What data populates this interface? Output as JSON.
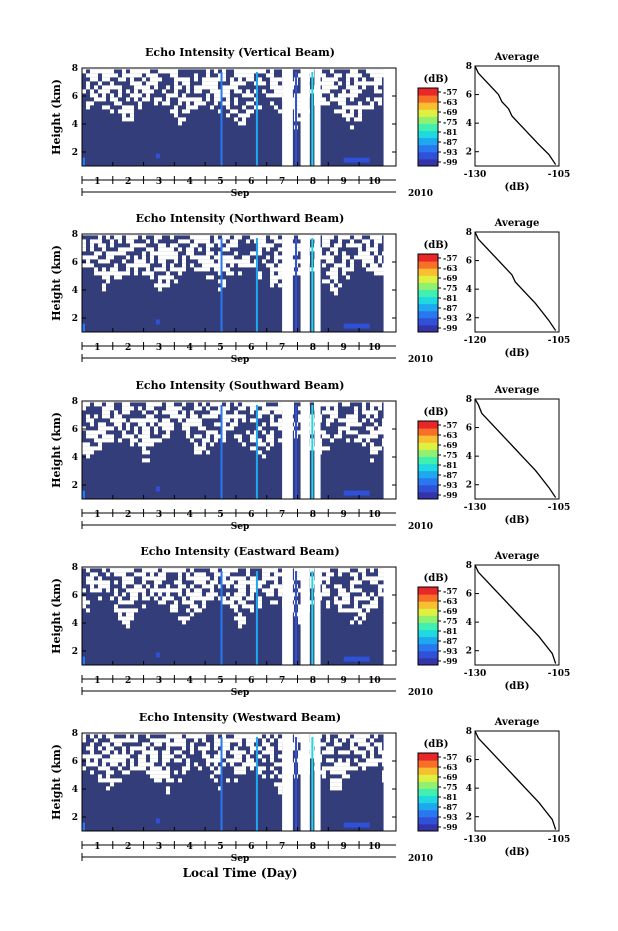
{
  "figure": {
    "xlabel": "Local Time (Day)",
    "month": "Sep",
    "year": "2010",
    "colors": {
      "background_fill": "#333d7a",
      "colormap": [
        "#3434a8",
        "#3050d8",
        "#2a78f0",
        "#1ea8f0",
        "#20d8e0",
        "#40f0b0",
        "#90f070",
        "#e0f040",
        "#f8c030",
        "#f87028",
        "#e82828"
      ]
    }
  },
  "chart_data": [
    {
      "type": "heatmap",
      "title": "Echo Intensity (Vertical Beam)",
      "ylabel": "Height (km)",
      "yticks": [
        "2",
        "4",
        "6",
        "8"
      ],
      "ylim": [
        1,
        8
      ],
      "xticks": [
        "1",
        "2",
        "3",
        "4",
        "5",
        "6",
        "7",
        "8",
        "9",
        "10"
      ],
      "xlim": [
        0.5,
        10.7
      ],
      "colorbar_label": "(dB)",
      "colorbar_ticks": [
        "-57",
        "-63",
        "-69",
        "-75",
        "-81",
        "-87",
        "-93",
        "-99"
      ],
      "profile": {
        "title": "Average",
        "xlabel": "(dB)",
        "xticks": [
          "-130",
          "-105"
        ],
        "xlim": [
          -130,
          -105
        ],
        "yticks": [
          "2",
          "4",
          "6",
          "8"
        ],
        "ylim": [
          1,
          8
        ],
        "x": [
          -130,
          -129,
          -127,
          -125,
          -123,
          -122,
          -120,
          -119,
          -117,
          -115,
          -113,
          -111,
          -108,
          -106
        ],
        "y": [
          8.0,
          7.5,
          7.0,
          6.5,
          6.0,
          5.5,
          5.0,
          4.5,
          4.0,
          3.5,
          3.0,
          2.5,
          1.8,
          1.1
        ]
      }
    },
    {
      "type": "heatmap",
      "title": "Echo Intensity (Northward Beam)",
      "ylabel": "Height (km)",
      "yticks": [
        "2",
        "4",
        "6",
        "8"
      ],
      "ylim": [
        1,
        8
      ],
      "xticks": [
        "1",
        "2",
        "3",
        "4",
        "5",
        "6",
        "7",
        "8",
        "9",
        "10"
      ],
      "xlim": [
        0.5,
        10.7
      ],
      "colorbar_label": "(dB)",
      "colorbar_ticks": [
        "-57",
        "-63",
        "-69",
        "-75",
        "-81",
        "-87",
        "-93",
        "-99"
      ],
      "profile": {
        "title": "Average",
        "xlabel": "(dB)",
        "xticks": [
          "-120",
          "-105"
        ],
        "xlim": [
          -130,
          -105
        ],
        "yticks": [
          "2",
          "4",
          "6",
          "8"
        ],
        "ylim": [
          1,
          8
        ],
        "x": [
          -130,
          -129,
          -127,
          -125,
          -123,
          -121,
          -119,
          -118,
          -116,
          -114,
          -112,
          -110,
          -108,
          -106
        ],
        "y": [
          8.0,
          7.5,
          7.0,
          6.5,
          6.0,
          5.5,
          5.0,
          4.5,
          4.0,
          3.5,
          3.0,
          2.4,
          1.8,
          1.1
        ]
      }
    },
    {
      "type": "heatmap",
      "title": "Echo Intensity (Southward Beam)",
      "ylabel": "Height (km)",
      "yticks": [
        "2",
        "4",
        "6",
        "8"
      ],
      "ylim": [
        1,
        8
      ],
      "xticks": [
        "1",
        "2",
        "3",
        "4",
        "5",
        "6",
        "7",
        "8",
        "9",
        "10"
      ],
      "xlim": [
        0.5,
        10.7
      ],
      "colorbar_label": "(dB)",
      "colorbar_ticks": [
        "-57",
        "-63",
        "-69",
        "-75",
        "-81",
        "-87",
        "-93",
        "-99"
      ],
      "profile": {
        "title": "Average",
        "xlabel": "(dB)",
        "xticks": [
          "-130",
          "-105"
        ],
        "xlim": [
          -130,
          -105
        ],
        "yticks": [
          "2",
          "4",
          "6",
          "8"
        ],
        "ylim": [
          1,
          8
        ],
        "x": [
          -130,
          -129,
          -128,
          -126,
          -124,
          -122,
          -120,
          -118,
          -116,
          -114,
          -112,
          -110,
          -108,
          -106
        ],
        "y": [
          8.0,
          7.6,
          7.0,
          6.5,
          6.0,
          5.5,
          5.0,
          4.5,
          4.0,
          3.5,
          3.0,
          2.4,
          1.8,
          1.1
        ]
      }
    },
    {
      "type": "heatmap",
      "title": "Echo Intensity (Eastward Beam)",
      "ylabel": "Height (km)",
      "yticks": [
        "2",
        "4",
        "6",
        "8"
      ],
      "ylim": [
        1,
        8
      ],
      "xticks": [
        "1",
        "2",
        "3",
        "4",
        "5",
        "6",
        "7",
        "8",
        "9",
        "10"
      ],
      "xlim": [
        0.5,
        10.7
      ],
      "colorbar_label": "(dB)",
      "colorbar_ticks": [
        "-57",
        "-63",
        "-69",
        "-75",
        "-81",
        "-87",
        "-93",
        "-99"
      ],
      "profile": {
        "title": "Average",
        "xlabel": "(dB)",
        "xticks": [
          "-130",
          "-105"
        ],
        "xlim": [
          -130,
          -105
        ],
        "yticks": [
          "2",
          "4",
          "6",
          "8"
        ],
        "ylim": [
          1,
          8
        ],
        "x": [
          -130,
          -129,
          -127,
          -125,
          -123,
          -121,
          -119,
          -117,
          -115,
          -113,
          -111,
          -109,
          -107,
          -106
        ],
        "y": [
          8.0,
          7.5,
          7.0,
          6.5,
          6.0,
          5.5,
          5.0,
          4.5,
          4.0,
          3.5,
          3.0,
          2.4,
          1.8,
          1.1
        ]
      }
    },
    {
      "type": "heatmap",
      "title": "Echo Intensity (Westward Beam)",
      "ylabel": "Height (km)",
      "yticks": [
        "2",
        "4",
        "6",
        "8"
      ],
      "ylim": [
        1,
        8
      ],
      "xticks": [
        "1",
        "2",
        "3",
        "4",
        "5",
        "6",
        "7",
        "8",
        "9",
        "10"
      ],
      "xlim": [
        0.5,
        10.7
      ],
      "colorbar_label": "(dB)",
      "colorbar_ticks": [
        "-57",
        "-63",
        "-69",
        "-75",
        "-81",
        "-87",
        "-93",
        "-99"
      ],
      "profile": {
        "title": "Average",
        "xlabel": "(dB)",
        "xticks": [
          "-130",
          "-105"
        ],
        "xlim": [
          -130,
          -105
        ],
        "yticks": [
          "2",
          "4",
          "6",
          "8"
        ],
        "ylim": [
          1,
          8
        ],
        "x": [
          -130,
          -129,
          -127,
          -125,
          -123,
          -121,
          -119,
          -117,
          -115,
          -113,
          -111,
          -109,
          -107,
          -106
        ],
        "y": [
          8.0,
          7.5,
          7.0,
          6.5,
          6.0,
          5.5,
          5.0,
          4.5,
          4.0,
          3.5,
          3.0,
          2.4,
          1.8,
          1.1
        ]
      }
    }
  ]
}
